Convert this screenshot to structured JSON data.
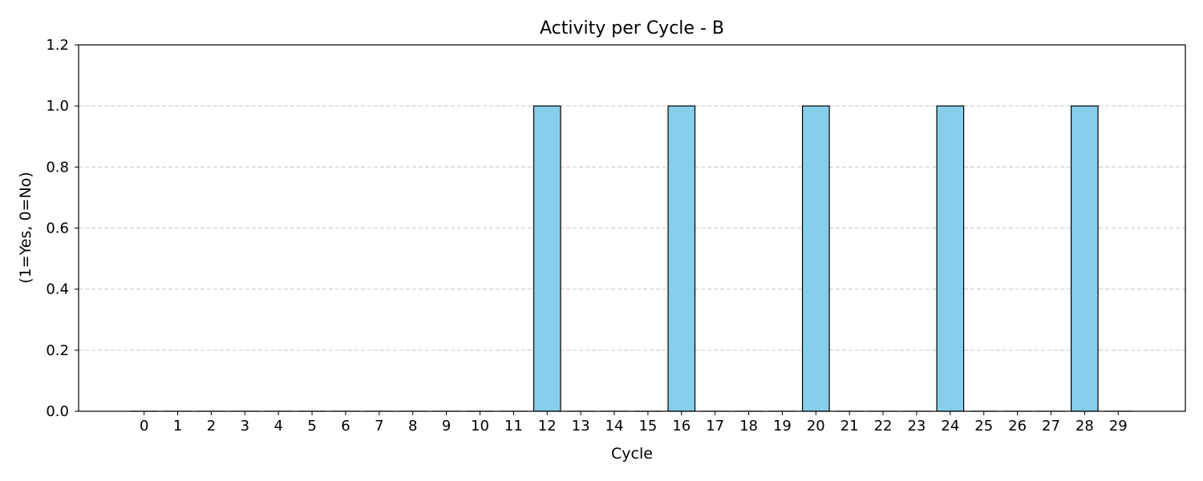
{
  "chart_data": {
    "type": "bar",
    "title": "Activity per Cycle - B",
    "xlabel": "Cycle",
    "ylabel": "(1=Yes, 0=No)",
    "categories": [
      "0",
      "1",
      "2",
      "3",
      "4",
      "5",
      "6",
      "7",
      "8",
      "9",
      "10",
      "11",
      "12",
      "13",
      "14",
      "15",
      "16",
      "17",
      "18",
      "19",
      "20",
      "21",
      "22",
      "23",
      "24",
      "25",
      "26",
      "27",
      "28",
      "29"
    ],
    "values": [
      0,
      0,
      0,
      0,
      0,
      0,
      0,
      0,
      0,
      0,
      0,
      0,
      1,
      0,
      0,
      0,
      1,
      0,
      0,
      0,
      1,
      0,
      0,
      0,
      1,
      0,
      0,
      0,
      1,
      0
    ],
    "ylim": [
      0,
      1.2
    ],
    "xlim": [
      -1.95,
      31.0
    ],
    "yticks": [
      0.0,
      0.2,
      0.4,
      0.6,
      0.8,
      1.0,
      1.2
    ],
    "ytick_labels": [
      "0.0",
      "0.2",
      "0.4",
      "0.6",
      "0.8",
      "1.0",
      "1.2"
    ],
    "grid": "y-dashed",
    "bar_color": "#87CEEB",
    "edge_color": "#000000",
    "grid_color": "#c8c8c8"
  }
}
